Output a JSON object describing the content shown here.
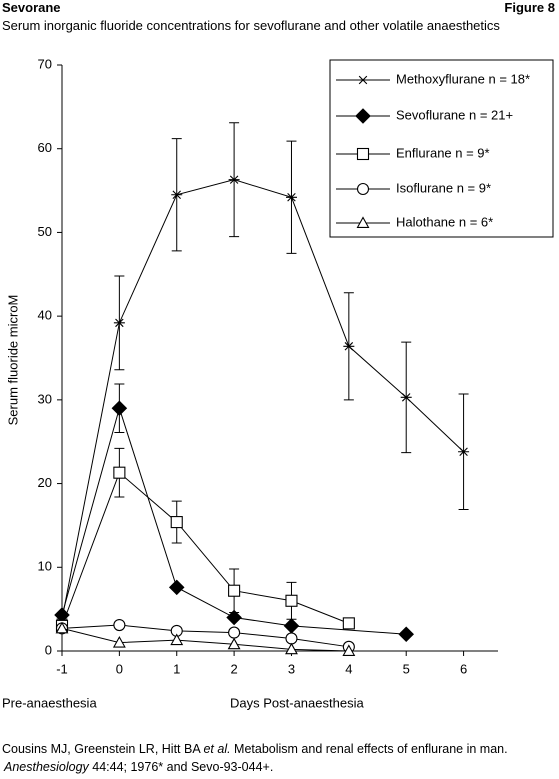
{
  "header": {
    "left": "Sevorane",
    "right": "Figure 8"
  },
  "chart_data": {
    "type": "line",
    "title": "Serum inorganic fluoride concentrations for sevoflurane and other volatile anaesthetics",
    "y_label": "Serum fluoride microM",
    "x_label_left": "Pre-anaesthesia",
    "x_label": "Days Post-anaesthesia",
    "xlim": [
      -1,
      6.6
    ],
    "ylim": [
      0,
      70
    ],
    "xticks": [
      -1,
      0,
      1,
      2,
      3,
      4,
      5,
      6
    ],
    "yticks": [
      0,
      10,
      20,
      30,
      40,
      50,
      60,
      70
    ],
    "color": "#000000",
    "legend": "top-right",
    "series": [
      {
        "name": "Methoxyflurane n = 18*",
        "marker": "asterisk",
        "x": [
          -1,
          0,
          1,
          2,
          3,
          4,
          5,
          6
        ],
        "values": [
          3.8,
          39.2,
          54.5,
          56.3,
          54.2,
          36.4,
          30.3,
          23.8
        ],
        "errors": [
          null,
          5.6,
          6.7,
          6.8,
          6.7,
          6.4,
          6.6,
          6.9
        ]
      },
      {
        "name": "Sevoflurane n = 21+",
        "marker": "diamond",
        "x": [
          -1,
          0,
          1,
          2,
          3,
          5
        ],
        "values": [
          4.3,
          29.0,
          7.6,
          4.0,
          3.0,
          2.0
        ],
        "errors": [
          null,
          2.9,
          null,
          null,
          null,
          null
        ]
      },
      {
        "name": "Enflurane n = 9*",
        "marker": "square",
        "x": [
          -1,
          0,
          1,
          2,
          3,
          4
        ],
        "values": [
          3.0,
          21.3,
          15.4,
          7.2,
          6.0,
          3.3
        ],
        "errors": [
          null,
          2.9,
          2.5,
          2.6,
          2.2,
          null
        ]
      },
      {
        "name": "Isoflurane n = 9*",
        "marker": "circle",
        "x": [
          -1,
          0,
          1,
          2,
          3,
          4
        ],
        "values": [
          2.7,
          3.1,
          2.4,
          2.2,
          1.5,
          0.5
        ],
        "errors": [
          null,
          null,
          null,
          null,
          null,
          null
        ]
      },
      {
        "name": "Halothane n = 6*",
        "marker": "triangle",
        "x": [
          -1,
          0,
          1,
          2,
          3,
          4
        ],
        "values": [
          2.7,
          1.0,
          1.3,
          0.8,
          0.2,
          0
        ],
        "errors": [
          null,
          null,
          null,
          null,
          null,
          null
        ]
      }
    ]
  },
  "footer": {
    "line1": [
      "Cousins MJ, Greenstein LR, Hitt BA ",
      "et al.",
      "  Metabolism and renal effects of enflurane in man."
    ],
    "line2": [
      "Anesthesiology",
      "  44:44; 1976* and Sevo-93-044+."
    ]
  }
}
